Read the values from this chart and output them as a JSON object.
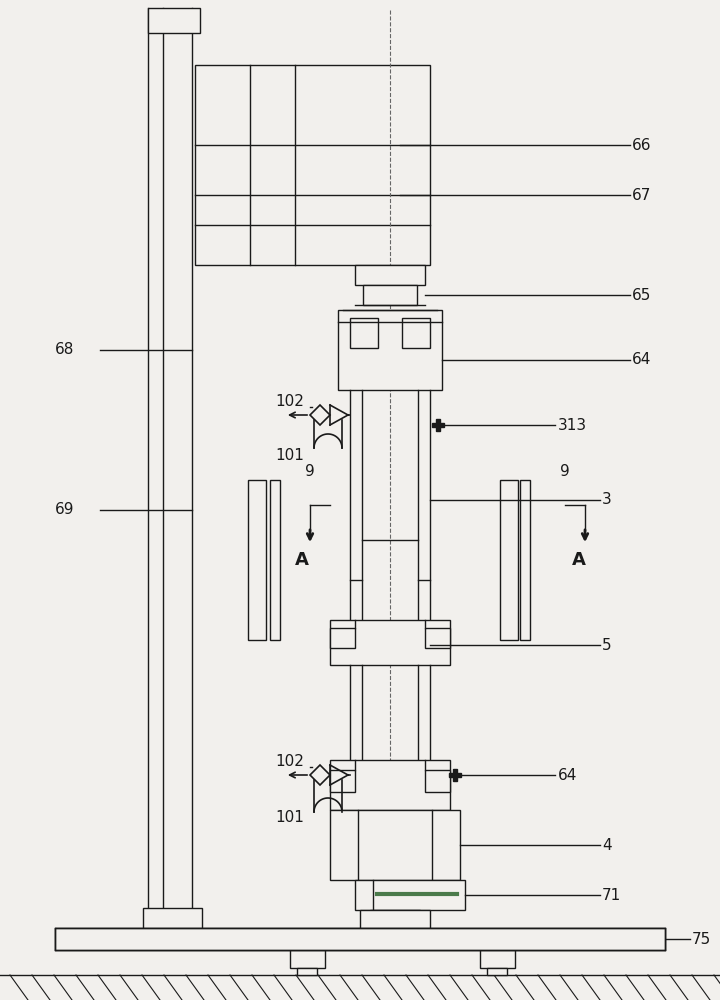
{
  "bg_color": "#f2f0ed",
  "line_color": "#1a1a1a",
  "lw": 1.0,
  "fig_w": 7.2,
  "fig_h": 10.0
}
